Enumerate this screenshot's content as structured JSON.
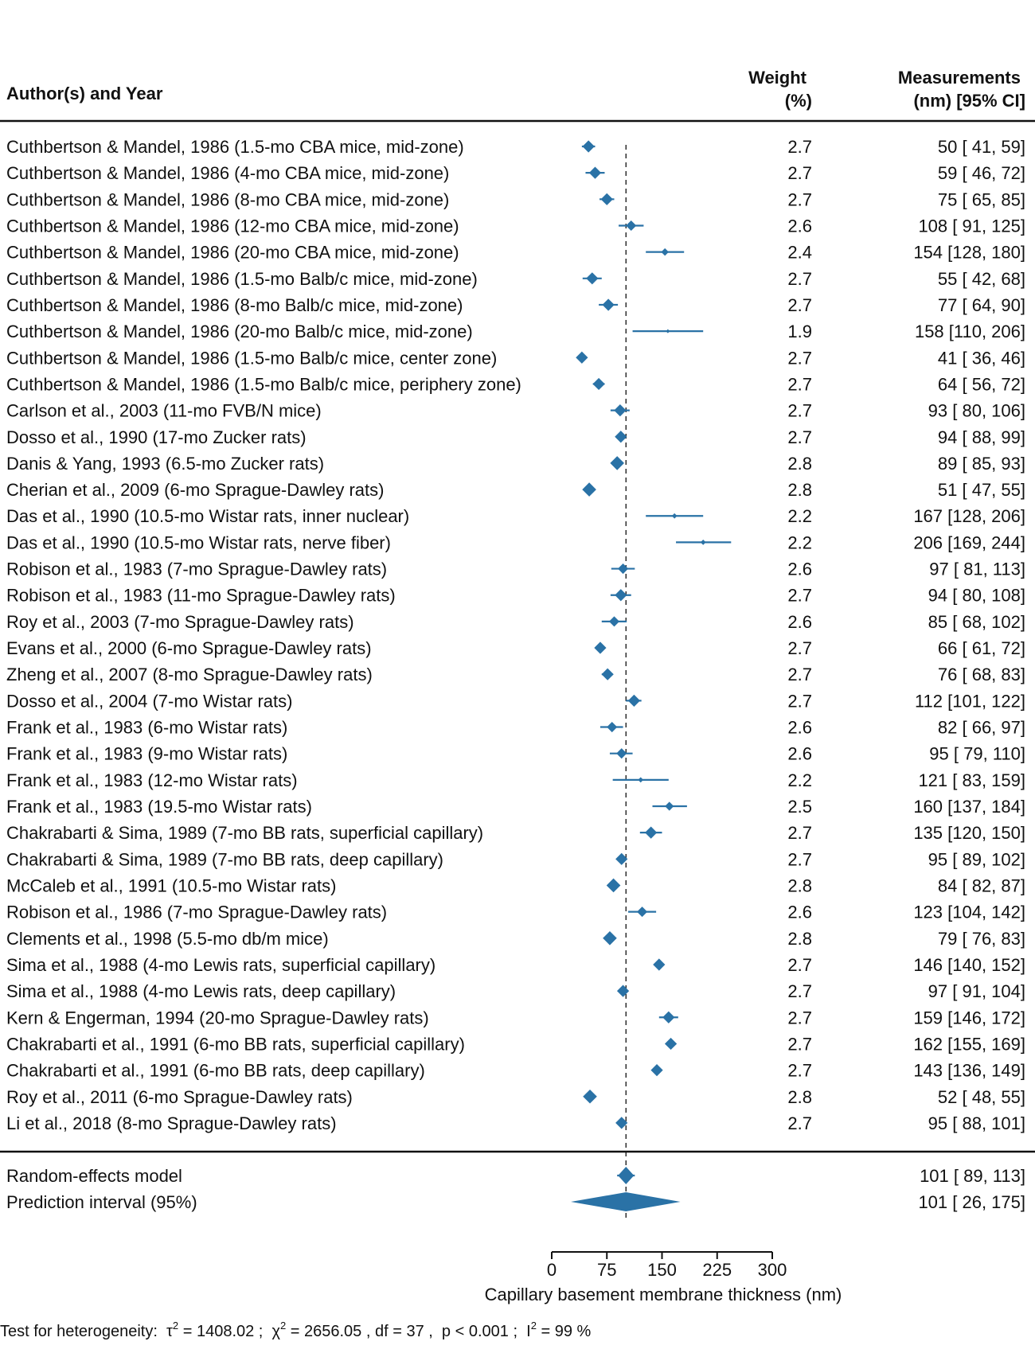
{
  "header": {
    "study": "Author(s) and Year",
    "weight_line1": "Weight",
    "weight_line2": "(%)",
    "meas_line1": "Measurements",
    "meas_line2": "(nm) [95% CI]"
  },
  "chart_data": {
    "type": "forest",
    "xlabel": "Capillary basement membrane thickness (nm)",
    "xlim": [
      0,
      300
    ],
    "x_ticks": [
      0,
      75,
      150,
      225,
      300
    ],
    "reference_line": 101,
    "color": "#2a72a6",
    "studies": [
      {
        "label": "Cuthbertson & Mandel, 1986 (1.5-mo CBA mice, mid-zone)",
        "weight": 2.7,
        "weight_text": "2.7",
        "est": 50,
        "lo": 41,
        "hi": 59,
        "ci_text": "50 [ 41,  59]"
      },
      {
        "label": "Cuthbertson & Mandel, 1986 (4-mo CBA mice, mid-zone)",
        "weight": 2.7,
        "weight_text": "2.7",
        "est": 59,
        "lo": 46,
        "hi": 72,
        "ci_text": "59 [ 46,  72]"
      },
      {
        "label": "Cuthbertson & Mandel, 1986 (8-mo CBA mice, mid-zone)",
        "weight": 2.7,
        "weight_text": "2.7",
        "est": 75,
        "lo": 65,
        "hi": 85,
        "ci_text": "75 [ 65,  85]"
      },
      {
        "label": "Cuthbertson & Mandel, 1986 (12-mo CBA mice, mid-zone)",
        "weight": 2.6,
        "weight_text": "2.6",
        "est": 108,
        "lo": 91,
        "hi": 125,
        "ci_text": "108 [ 91, 125]"
      },
      {
        "label": "Cuthbertson & Mandel, 1986 (20-mo CBA mice, mid-zone)",
        "weight": 2.4,
        "weight_text": "2.4",
        "est": 154,
        "lo": 128,
        "hi": 180,
        "ci_text": "154 [128, 180]"
      },
      {
        "label": "Cuthbertson & Mandel, 1986 (1.5-mo Balb/c mice, mid-zone)",
        "weight": 2.7,
        "weight_text": "2.7",
        "est": 55,
        "lo": 42,
        "hi": 68,
        "ci_text": "55 [ 42,  68]"
      },
      {
        "label": "Cuthbertson & Mandel, 1986 (8-mo Balb/c mice, mid-zone)",
        "weight": 2.7,
        "weight_text": "2.7",
        "est": 77,
        "lo": 64,
        "hi": 90,
        "ci_text": "77 [ 64,  90]"
      },
      {
        "label": "Cuthbertson & Mandel, 1986 (20-mo Balb/c mice, mid-zone)",
        "weight": 1.9,
        "weight_text": "1.9",
        "est": 158,
        "lo": 110,
        "hi": 206,
        "ci_text": "158 [110, 206]"
      },
      {
        "label": "Cuthbertson & Mandel, 1986 (1.5-mo Balb/c mice, center zone)",
        "weight": 2.7,
        "weight_text": "2.7",
        "est": 41,
        "lo": 36,
        "hi": 46,
        "ci_text": "41 [ 36,  46]"
      },
      {
        "label": "Cuthbertson & Mandel, 1986 (1.5-mo Balb/c mice, periphery zone)",
        "weight": 2.7,
        "weight_text": "2.7",
        "est": 64,
        "lo": 56,
        "hi": 72,
        "ci_text": "64 [ 56,  72]"
      },
      {
        "label": "Carlson et al., 2003 (11-mo FVB/N mice)",
        "weight": 2.7,
        "weight_text": "2.7",
        "est": 93,
        "lo": 80,
        "hi": 106,
        "ci_text": "93 [ 80, 106]"
      },
      {
        "label": "Dosso et al., 1990 (17-mo Zucker rats)",
        "weight": 2.7,
        "weight_text": "2.7",
        "est": 94,
        "lo": 88,
        "hi": 99,
        "ci_text": "94 [ 88,  99]"
      },
      {
        "label": "Danis & Yang, 1993 (6.5-mo Zucker rats)",
        "weight": 2.8,
        "weight_text": "2.8",
        "est": 89,
        "lo": 85,
        "hi": 93,
        "ci_text": "89 [ 85,  93]"
      },
      {
        "label": "Cherian et al., 2009 (6-mo Sprague-Dawley rats)",
        "weight": 2.8,
        "weight_text": "2.8",
        "est": 51,
        "lo": 47,
        "hi": 55,
        "ci_text": "51 [ 47,  55]"
      },
      {
        "label": "Das et al., 1990 (10.5-mo Wistar rats, inner nuclear)",
        "weight": 2.2,
        "weight_text": "2.2",
        "est": 167,
        "lo": 128,
        "hi": 206,
        "ci_text": "167 [128, 206]"
      },
      {
        "label": "Das et al., 1990 (10.5-mo Wistar rats, nerve fiber)",
        "weight": 2.2,
        "weight_text": "2.2",
        "est": 206,
        "lo": 169,
        "hi": 244,
        "ci_text": "206 [169, 244]"
      },
      {
        "label": "Robison et al., 1983 (7-mo Sprague-Dawley rats)",
        "weight": 2.6,
        "weight_text": "2.6",
        "est": 97,
        "lo": 81,
        "hi": 113,
        "ci_text": "97 [ 81, 113]"
      },
      {
        "label": "Robison et al., 1983 (11-mo Sprague-Dawley rats)",
        "weight": 2.7,
        "weight_text": "2.7",
        "est": 94,
        "lo": 80,
        "hi": 108,
        "ci_text": "94 [ 80, 108]"
      },
      {
        "label": "Roy et al., 2003 (7-mo Sprague-Dawley rats)",
        "weight": 2.6,
        "weight_text": "2.6",
        "est": 85,
        "lo": 68,
        "hi": 102,
        "ci_text": "85 [ 68, 102]"
      },
      {
        "label": "Evans et al., 2000 (6-mo Sprague-Dawley rats)",
        "weight": 2.7,
        "weight_text": "2.7",
        "est": 66,
        "lo": 61,
        "hi": 72,
        "ci_text": "66 [ 61,  72]"
      },
      {
        "label": "Zheng et al., 2007 (8-mo Sprague-Dawley rats)",
        "weight": 2.7,
        "weight_text": "2.7",
        "est": 76,
        "lo": 68,
        "hi": 83,
        "ci_text": "76 [ 68,  83]"
      },
      {
        "label": "Dosso et al., 2004 (7-mo Wistar rats)",
        "weight": 2.7,
        "weight_text": "2.7",
        "est": 112,
        "lo": 101,
        "hi": 122,
        "ci_text": "112 [101, 122]"
      },
      {
        "label": "Frank et al., 1983 (6-mo Wistar rats)",
        "weight": 2.6,
        "weight_text": "2.6",
        "est": 82,
        "lo": 66,
        "hi": 97,
        "ci_text": "82 [ 66,  97]"
      },
      {
        "label": "Frank et al., 1983 (9-mo Wistar rats)",
        "weight": 2.6,
        "weight_text": "2.6",
        "est": 95,
        "lo": 79,
        "hi": 110,
        "ci_text": "95 [ 79, 110]"
      },
      {
        "label": "Frank et al., 1983 (12-mo Wistar rats)",
        "weight": 2.2,
        "weight_text": "2.2",
        "est": 121,
        "lo": 83,
        "hi": 159,
        "ci_text": "121 [ 83, 159]"
      },
      {
        "label": "Frank et al., 1983 (19.5-mo Wistar rats)",
        "weight": 2.5,
        "weight_text": "2.5",
        "est": 160,
        "lo": 137,
        "hi": 184,
        "ci_text": "160 [137, 184]"
      },
      {
        "label": "Chakrabarti & Sima, 1989 (7-mo BB rats, superficial capillary)",
        "weight": 2.7,
        "weight_text": "2.7",
        "est": 135,
        "lo": 120,
        "hi": 150,
        "ci_text": "135 [120, 150]"
      },
      {
        "label": "Chakrabarti & Sima, 1989 (7-mo BB rats, deep capillary)",
        "weight": 2.7,
        "weight_text": "2.7",
        "est": 95,
        "lo": 89,
        "hi": 102,
        "ci_text": "95 [ 89, 102]"
      },
      {
        "label": "McCaleb et al., 1991 (10.5-mo Wistar rats)",
        "weight": 2.8,
        "weight_text": "2.8",
        "est": 84,
        "lo": 82,
        "hi": 87,
        "ci_text": "84 [ 82,  87]"
      },
      {
        "label": "Robison et al., 1986 (7-mo Sprague-Dawley rats)",
        "weight": 2.6,
        "weight_text": "2.6",
        "est": 123,
        "lo": 104,
        "hi": 142,
        "ci_text": "123 [104, 142]"
      },
      {
        "label": "Clements et al., 1998 (5.5-mo db/m mice)",
        "weight": 2.8,
        "weight_text": "2.8",
        "est": 79,
        "lo": 76,
        "hi": 83,
        "ci_text": "79 [ 76,  83]"
      },
      {
        "label": "Sima et al., 1988 (4-mo Lewis rats, superficial capillary)",
        "weight": 2.7,
        "weight_text": "2.7",
        "est": 146,
        "lo": 140,
        "hi": 152,
        "ci_text": "146 [140, 152]"
      },
      {
        "label": "Sima et al., 1988 (4-mo Lewis rats, deep capillary)",
        "weight": 2.7,
        "weight_text": "2.7",
        "est": 97,
        "lo": 91,
        "hi": 104,
        "ci_text": "97 [ 91, 104]"
      },
      {
        "label": "Kern & Engerman, 1994 (20-mo Sprague-Dawley rats)",
        "weight": 2.7,
        "weight_text": "2.7",
        "est": 159,
        "lo": 146,
        "hi": 172,
        "ci_text": "159 [146, 172]"
      },
      {
        "label": "Chakrabarti et al., 1991 (6-mo BB rats, superficial capillary)",
        "weight": 2.7,
        "weight_text": "2.7",
        "est": 162,
        "lo": 155,
        "hi": 169,
        "ci_text": "162 [155, 169]"
      },
      {
        "label": "Chakrabarti et al., 1991 (6-mo BB rats, deep capillary)",
        "weight": 2.7,
        "weight_text": "2.7",
        "est": 143,
        "lo": 136,
        "hi": 149,
        "ci_text": "143 [136, 149]"
      },
      {
        "label": "Roy et al., 2011 (6-mo Sprague-Dawley rats)",
        "weight": 2.8,
        "weight_text": "2.8",
        "est": 52,
        "lo": 48,
        "hi": 55,
        "ci_text": "52 [ 48,  55]"
      },
      {
        "label": "Li et al., 2018 (8-mo Sprague-Dawley rats)",
        "weight": 2.7,
        "weight_text": "2.7",
        "est": 95,
        "lo": 88,
        "hi": 101,
        "ci_text": "95 [ 88, 101]"
      }
    ],
    "summary": {
      "label": "Random-effects model",
      "est": 101,
      "lo": 89,
      "hi": 113,
      "ci_text": "101 [ 89, 113]"
    },
    "prediction_interval": {
      "label": "Prediction interval (95%)",
      "est": 101,
      "lo": 26,
      "hi": 175,
      "ci_text": "101 [ 26, 175]"
    },
    "heterogeneity": {
      "prefix": "Test for heterogeneity:  ",
      "tau_sym": "τ",
      "sup2": "2",
      "tau_value": " = 1408.02 ;  ",
      "chi_sym": "χ",
      "chi_value": " = 2656.05 , df = 37 ,  p < 0.001 ;  ",
      "i_sym": "I",
      "i_value": " = 99 %"
    }
  }
}
